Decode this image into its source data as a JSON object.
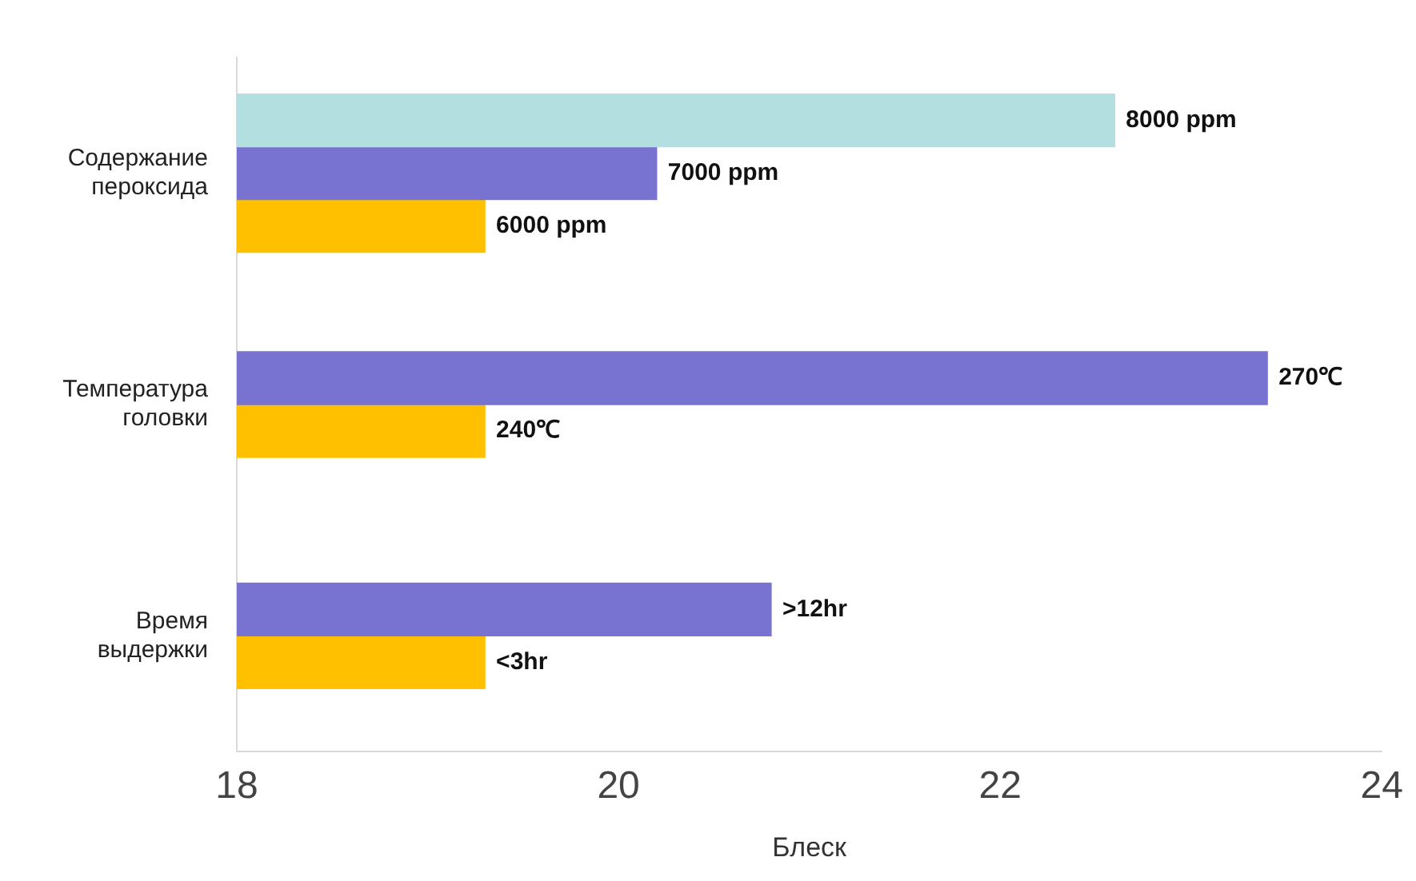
{
  "chart_data": {
    "type": "bar",
    "orientation": "horizontal",
    "xlabel": "Блеск",
    "categories": [
      "Содержание пероксида",
      "Температура головки",
      "Время выдержки"
    ],
    "series": [
      {
        "color": "#b4dfe0",
        "values": [
          22.6,
          null,
          null
        ]
      },
      {
        "color": "#7873d0",
        "values": [
          20.2,
          23.4,
          20.8
        ]
      },
      {
        "color": "#ffc000",
        "values": [
          19.3,
          19.3,
          19.3
        ]
      }
    ],
    "annotations": [
      "8000 ppm",
      "7000 ppm",
      "6000 ppm",
      "270℃",
      "240℃",
      ">12hr",
      "<3hr"
    ],
    "xlim": [
      18,
      24
    ],
    "xticks": [
      18,
      20,
      22,
      24
    ],
    "grid": false,
    "legend": false
  }
}
